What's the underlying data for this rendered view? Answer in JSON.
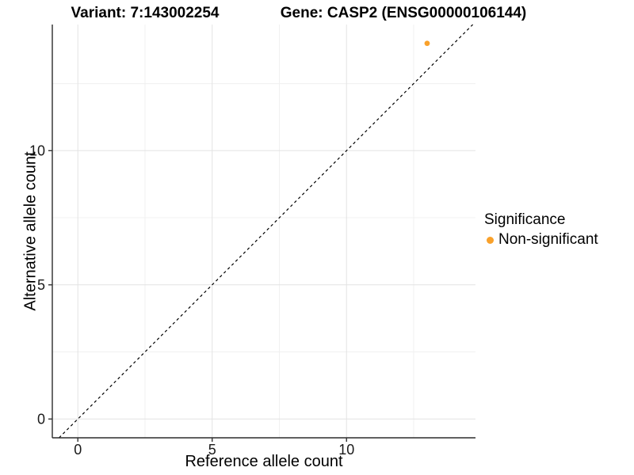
{
  "chart_data": {
    "type": "scatter",
    "titles": {
      "variant": "Variant: 7:143002254",
      "gene": "Gene: CASP2 (ENSG00000106144)"
    },
    "xlabel": "Reference allele count",
    "ylabel": "Alternative allele count",
    "xlim": [
      -0.95,
      14.8
    ],
    "ylim": [
      -0.7,
      14.7
    ],
    "xticks": [
      0,
      5,
      10
    ],
    "yticks": [
      0,
      5,
      10
    ],
    "x_minor_ticks": [
      2.5,
      7.5,
      12.5
    ],
    "y_minor_ticks": [
      2.5,
      7.5,
      12.5
    ],
    "grid": "major+minor",
    "points": [
      {
        "x": 13,
        "y": 14,
        "series": "Non-significant"
      }
    ],
    "identity_line": {
      "slope": 1,
      "intercept": 0,
      "style": "dashed",
      "color": "#000000"
    },
    "legend": {
      "title": "Significance",
      "position": "right",
      "entries": [
        {
          "label": "Non-significant",
          "color": "#F9A12B"
        }
      ]
    }
  },
  "colors": {
    "point": "#F9A12B",
    "axis_line": "#2B2B2B",
    "tick_mark": "#333333",
    "tick_label": "#1A1A1A",
    "grid_major": "#E3E3E3",
    "grid_minor": "#F0F0F0",
    "background": "#FFFFFF"
  }
}
